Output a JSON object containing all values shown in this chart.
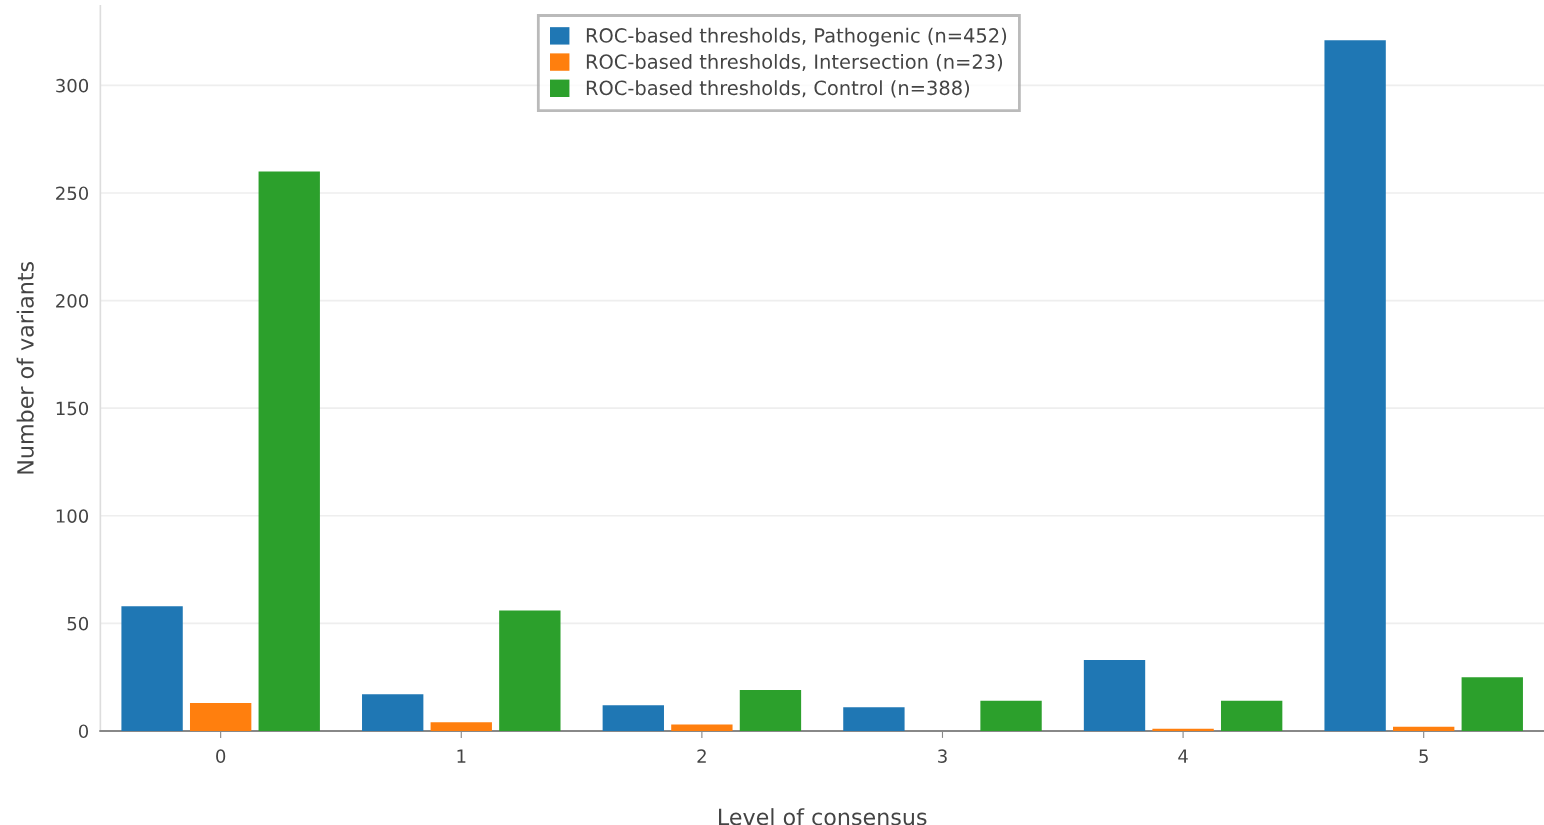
{
  "chart_data": {
    "type": "bar",
    "xlabel": "Level of consensus",
    "ylabel": "Number of variants",
    "categories": [
      "0",
      "1",
      "2",
      "3",
      "4",
      "5"
    ],
    "series": [
      {
        "name": "ROC-based thresholds, Pathogenic (n=452)",
        "color": "#1f77b4",
        "values": [
          58,
          17,
          12,
          11,
          33,
          321
        ]
      },
      {
        "name": "ROC-based thresholds, Intersection (n=23)",
        "color": "#ff7f0e",
        "values": [
          13,
          4,
          3,
          0,
          1,
          2
        ]
      },
      {
        "name": "ROC-based thresholds, Control (n=388)",
        "color": "#2ca02c",
        "values": [
          260,
          56,
          19,
          14,
          14,
          25
        ]
      }
    ],
    "ylim": [
      0,
      337
    ],
    "yticks": [
      0,
      50,
      100,
      150,
      200,
      250,
      300
    ],
    "grid": "y",
    "legend": "top"
  }
}
